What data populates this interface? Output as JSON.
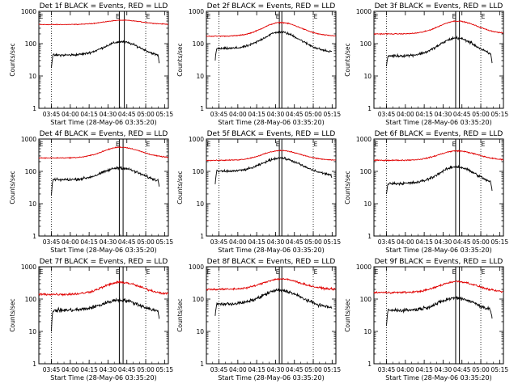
{
  "chart_data": {
    "type": "line",
    "layout": "3x3 grid",
    "xlabel": "Start Time (28-May-06 03:35:20)",
    "ylabel": "Counts/sec",
    "yscale": "log",
    "ylim": [
      1,
      1000
    ],
    "y_tick_labels": [
      "1",
      "10",
      "100",
      "1000"
    ],
    "x_tick_labels": [
      "03:45",
      "04:00",
      "04:15",
      "04:30",
      "04:45",
      "05:00",
      "05:15"
    ],
    "xlim_minutes_from_0335": [
      0,
      103
    ],
    "legend": "BLACK = Events, RED = LLD",
    "series_colors": {
      "events": "#000000",
      "lld": "#e00000"
    },
    "panels": [
      {
        "title": "Det 1f BLACK = Events, RED = LLD",
        "marker_e": "E",
        "dotted_lines_min": [
          10,
          85
        ],
        "box_min": [
          64,
          68
        ],
        "lld": {
          "base": 390,
          "peak": 530,
          "peak_min": 66,
          "jitter": 0.015
        },
        "events": {
          "base": 44,
          "peak": 115,
          "peak_min": 66,
          "start_min": 10,
          "end_min": 96,
          "start_drop_to": 18,
          "end_drop_to": 20,
          "jitter": 0.05
        }
      },
      {
        "title": "Det 2f BLACK = Events, RED = LLD",
        "marker_e": "E",
        "dotted_lines_min": [
          10,
          85
        ],
        "box_min": [
          58,
          60
        ],
        "lld": {
          "base": 170,
          "peak": 450,
          "peak_min": 59,
          "jitter": 0.02
        },
        "events": {
          "base": 70,
          "peak": 230,
          "peak_min": 59,
          "start_min": 7,
          "end_min": 100,
          "start_drop_to": 30,
          "end_drop_to": 60,
          "jitter": 0.05
        }
      },
      {
        "title": "Det 3f BLACK = Events, RED = LLD",
        "marker_e": "E",
        "dotted_lines_min": [
          10,
          85
        ],
        "box_min": [
          65,
          68
        ],
        "lld": {
          "base": 200,
          "peak": 500,
          "peak_min": 66,
          "jitter": 0.02
        },
        "events": {
          "base": 42,
          "peak": 150,
          "peak_min": 66,
          "start_min": 10,
          "end_min": 94,
          "start_drop_to": 20,
          "end_drop_to": 25,
          "jitter": 0.06
        }
      },
      {
        "title": "Det 4f BLACK = Events, RED = LLD",
        "marker_e": "E",
        "dotted_lines_min": [
          10,
          85
        ],
        "box_min": [
          64,
          67
        ],
        "lld": {
          "base": 260,
          "peak": 560,
          "peak_min": 65,
          "jitter": 0.02
        },
        "events": {
          "base": 55,
          "peak": 130,
          "peak_min": 65,
          "start_min": 10,
          "end_min": 96,
          "start_drop_to": 18,
          "end_drop_to": 30,
          "jitter": 0.06
        }
      },
      {
        "title": "Det 5f BLACK = Events, RED = LLD",
        "marker_e": "E",
        "dotted_lines_min": [
          10,
          85
        ],
        "box_min": [
          58,
          60
        ],
        "lld": {
          "base": 220,
          "peak": 440,
          "peak_min": 59,
          "jitter": 0.02
        },
        "events": {
          "base": 100,
          "peak": 260,
          "peak_min": 59,
          "start_min": 7,
          "end_min": 100,
          "start_drop_to": 40,
          "end_drop_to": 60,
          "jitter": 0.05
        }
      },
      {
        "title": "Det 6f BLACK = Events, RED = LLD",
        "marker_e": "E",
        "dotted_lines_min": [
          10,
          85
        ],
        "box_min": [
          65,
          68
        ],
        "lld": {
          "base": 220,
          "peak": 430,
          "peak_min": 66,
          "jitter": 0.025
        },
        "events": {
          "base": 42,
          "peak": 140,
          "peak_min": 66,
          "start_min": 10,
          "end_min": 94,
          "start_drop_to": 20,
          "end_drop_to": 25,
          "jitter": 0.06
        }
      },
      {
        "title": "Det 7f BLACK = Events, RED = LLD",
        "marker_e": "E",
        "dotted_lines_min": [
          10,
          85
        ],
        "box_min": [
          64,
          67
        ],
        "lld": {
          "base": 140,
          "peak": 330,
          "peak_min": 65,
          "jitter": 0.05
        },
        "events": {
          "base": 45,
          "peak": 95,
          "peak_min": 65,
          "start_min": 10,
          "end_min": 96,
          "start_drop_to": 10,
          "end_drop_to": 20,
          "jitter": 0.08
        }
      },
      {
        "title": "Det 8f BLACK = Events, RED = LLD",
        "marker_e": "E",
        "dotted_lines_min": [
          10,
          85
        ],
        "box_min": [
          58,
          60
        ],
        "lld": {
          "base": 200,
          "peak": 420,
          "peak_min": 59,
          "jitter": 0.04
        },
        "events": {
          "base": 70,
          "peak": 190,
          "peak_min": 59,
          "start_min": 7,
          "end_min": 100,
          "start_drop_to": 30,
          "end_drop_to": 50,
          "jitter": 0.07
        }
      },
      {
        "title": "Det 9f BLACK = Events, RED = LLD",
        "marker_e": "E",
        "dotted_lines_min": [
          10,
          85
        ],
        "box_min": [
          65,
          68
        ],
        "lld": {
          "base": 160,
          "peak": 350,
          "peak_min": 66,
          "jitter": 0.04
        },
        "events": {
          "base": 45,
          "peak": 110,
          "peak_min": 66,
          "start_min": 10,
          "end_min": 94,
          "start_drop_to": 15,
          "end_drop_to": 25,
          "jitter": 0.08
        }
      }
    ]
  }
}
